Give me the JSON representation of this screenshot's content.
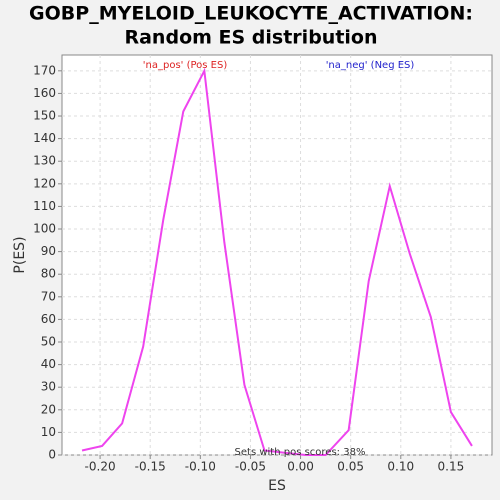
{
  "chart_data": {
    "type": "line",
    "title": [
      "GOBP_MYELOID_LEUKOCYTE_ACTIVATION:",
      "Random ES distribution"
    ],
    "x_label": "ES",
    "y_label": "P(ES)",
    "annotations": [
      "'na_pos' (Pos ES)",
      "'na_neg' (Neg ES)",
      "Sets with pos scores: 38%"
    ],
    "annotation_colors": [
      "#dd2222",
      "#2222cc",
      "#333333"
    ],
    "x": [
      -0.218,
      -0.198,
      -0.178,
      -0.157,
      -0.137,
      -0.117,
      -0.096,
      -0.076,
      -0.056,
      -0.036,
      -0.016,
      0.005,
      0.025,
      0.048,
      0.068,
      0.089,
      0.109,
      0.13,
      0.15,
      0.171
    ],
    "series": [
      {
        "name": "P(ES)",
        "color": "#ee44ee",
        "values": [
          2,
          4,
          14,
          48,
          104,
          152,
          170,
          94,
          31,
          2,
          1,
          0,
          0,
          11,
          77,
          119,
          89,
          61,
          19,
          4
        ]
      }
    ],
    "xlim": [
      -0.238,
      0.191
    ],
    "ylim": [
      0,
      177
    ],
    "xticks": [
      {
        "value": -0.2,
        "label": "-0.20"
      },
      -0.15,
      {
        "value": -0.1,
        "label": "-0.10"
      },
      -0.05,
      {
        "value": 0,
        "label": "0.00"
      },
      0.05,
      {
        "value": 0.1,
        "label": "0.10"
      },
      0.15
    ],
    "yticks": [
      0,
      10,
      20,
      30,
      40,
      50,
      60,
      70,
      80,
      90,
      100,
      110,
      120,
      130,
      140,
      150,
      160,
      170
    ],
    "grid": true
  }
}
